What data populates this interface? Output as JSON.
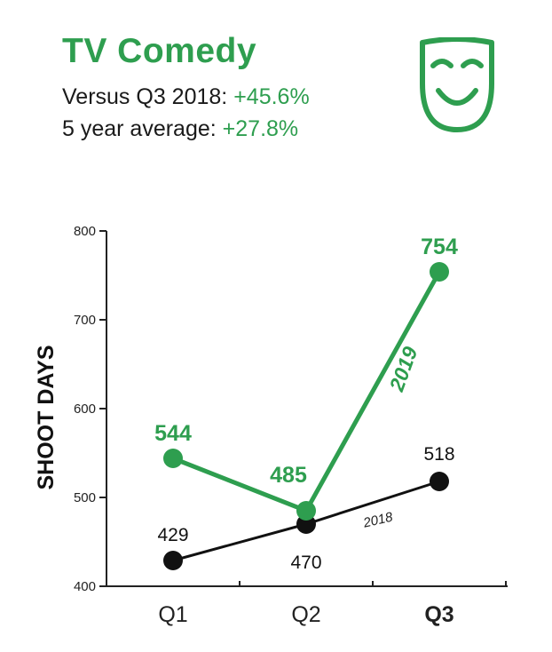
{
  "header": {
    "title": "TV Comedy",
    "stats": [
      {
        "label": "Versus Q3 2018:",
        "value": "+45.6%"
      },
      {
        "label": "5 year average:",
        "value": "+27.8%"
      }
    ],
    "icon": "comedy-mask-icon"
  },
  "colors": {
    "accent": "#2e9e4f",
    "secondary": "#111111"
  },
  "chart_data": {
    "type": "line",
    "title": "",
    "xlabel": "",
    "ylabel": "SHOOT DAYS",
    "categories": [
      "Q1",
      "Q2",
      "Q3"
    ],
    "highlight_category": "Q3",
    "ylim": [
      400,
      800
    ],
    "yticks": [
      400,
      500,
      600,
      700,
      800
    ],
    "grid": false,
    "series": [
      {
        "name": "2019",
        "values": [
          544,
          485,
          754
        ],
        "color": "#2e9e4f"
      },
      {
        "name": "2018",
        "values": [
          429,
          470,
          518
        ],
        "color": "#111111"
      }
    ]
  }
}
